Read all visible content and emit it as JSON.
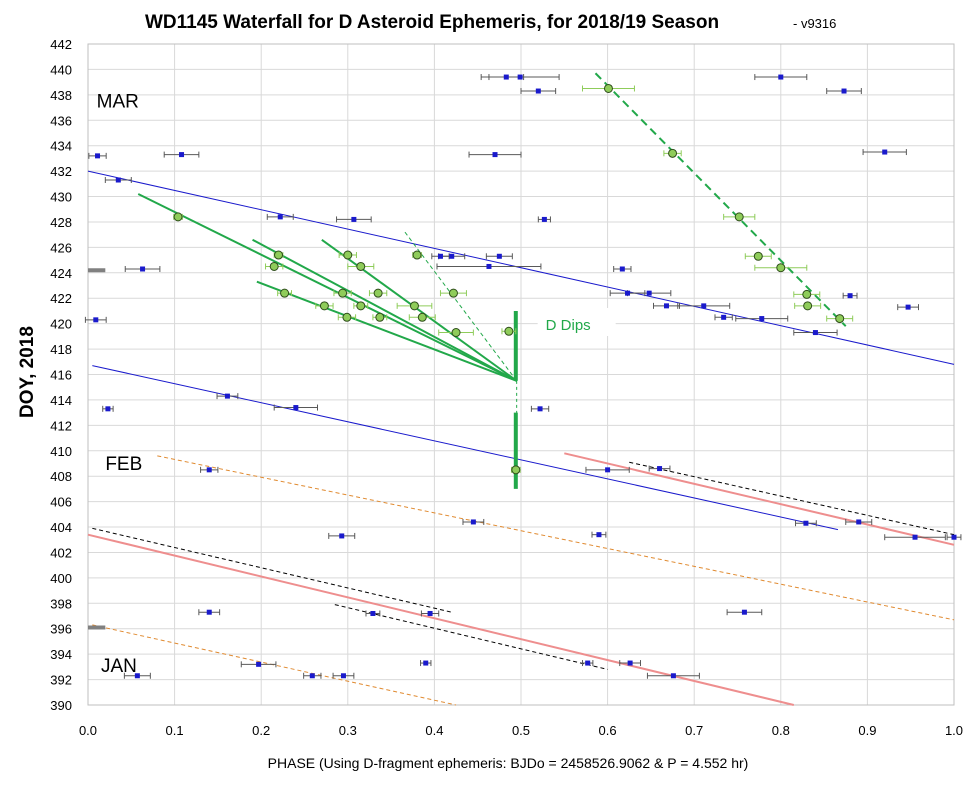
{
  "chart_data": {
    "type": "scatter",
    "title": "WD1145 Waterfall for D Asteroid Ephemeris, for 2018/19 Season",
    "subtitle": "- v9316",
    "xlabel": "PHASE (Using D-fragment ephemeris: BJDo = 2458526.9062 & P = 4.552 hr)",
    "ylabel": "DOY, 2018",
    "xlim": [
      0.0,
      1.0
    ],
    "ylim": [
      390,
      442
    ],
    "x_ticks": [
      "0.0",
      "0.1",
      "0.2",
      "0.3",
      "0.4",
      "0.5",
      "0.6",
      "0.7",
      "0.8",
      "0.9",
      "1.0"
    ],
    "y_ticks": [
      "390",
      "392",
      "394",
      "396",
      "398",
      "400",
      "402",
      "404",
      "406",
      "408",
      "410",
      "412",
      "414",
      "416",
      "418",
      "420",
      "422",
      "424",
      "426",
      "428",
      "430",
      "432",
      "434",
      "436",
      "438",
      "440",
      "442"
    ],
    "grid": true,
    "annotations": [
      {
        "text": "MAR",
        "x": 0.01,
        "y": 437.0
      },
      {
        "text": "FEB",
        "x": 0.02,
        "y": 408.5
      },
      {
        "text": "JAN",
        "x": 0.015,
        "y": 392.6
      },
      {
        "text": "D Dips",
        "x": 0.51,
        "y": 419.5
      }
    ],
    "series": [
      {
        "marker": "square",
        "color": "#1a1acc",
        "points": [
          {
            "x": 0.483,
            "y": 439.4,
            "xerr": 0.02
          },
          {
            "x": 0.499,
            "y": 439.4,
            "xerr": 0.045
          },
          {
            "x": 0.8,
            "y": 439.4,
            "xerr": 0.03
          },
          {
            "x": 0.52,
            "y": 438.3,
            "xerr": 0.02
          },
          {
            "x": 0.873,
            "y": 438.3,
            "xerr": 0.02
          },
          {
            "x": 0.011,
            "y": 433.2,
            "xerr": 0.01
          },
          {
            "x": 0.108,
            "y": 433.3,
            "xerr": 0.02
          },
          {
            "x": 0.47,
            "y": 433.3,
            "xerr": 0.03
          },
          {
            "x": 0.92,
            "y": 433.5,
            "xerr": 0.025
          },
          {
            "x": 0.035,
            "y": 431.3,
            "xerr": 0.015
          },
          {
            "x": 0.222,
            "y": 428.4,
            "xerr": 0.015
          },
          {
            "x": 0.307,
            "y": 428.2,
            "xerr": 0.02
          },
          {
            "x": 0.527,
            "y": 428.2,
            "xerr": 0.007
          },
          {
            "x": 0.407,
            "y": 425.3,
            "xerr": 0.01
          },
          {
            "x": 0.42,
            "y": 425.3,
            "xerr": 0.015
          },
          {
            "x": 0.475,
            "y": 425.3,
            "xerr": 0.015
          },
          {
            "x": 0.063,
            "y": 424.3,
            "xerr": 0.02
          },
          {
            "x": 0.463,
            "y": 424.5,
            "xerr": 0.06
          },
          {
            "x": 0.617,
            "y": 424.3,
            "xerr": 0.01
          },
          {
            "x": 0.623,
            "y": 422.4,
            "xerr": 0.02
          },
          {
            "x": 0.648,
            "y": 422.4,
            "xerr": 0.025
          },
          {
            "x": 0.88,
            "y": 422.2,
            "xerr": 0.008
          },
          {
            "x": 0.668,
            "y": 421.4,
            "xerr": 0.015
          },
          {
            "x": 0.711,
            "y": 421.4,
            "xerr": 0.03
          },
          {
            "x": 0.947,
            "y": 421.3,
            "xerr": 0.012
          },
          {
            "x": 0.009,
            "y": 420.3,
            "xerr": 0.012
          },
          {
            "x": 0.734,
            "y": 420.5,
            "xerr": 0.01
          },
          {
            "x": 0.778,
            "y": 420.4,
            "xerr": 0.03
          },
          {
            "x": 0.84,
            "y": 419.3,
            "xerr": 0.025
          },
          {
            "x": 0.161,
            "y": 414.3,
            "xerr": 0.012
          },
          {
            "x": 0.023,
            "y": 413.3,
            "xerr": 0.006
          },
          {
            "x": 0.24,
            "y": 413.4,
            "xerr": 0.025
          },
          {
            "x": 0.522,
            "y": 413.3,
            "xerr": 0.01
          },
          {
            "x": 0.14,
            "y": 408.5,
            "xerr": 0.01
          },
          {
            "x": 0.6,
            "y": 408.5,
            "xerr": 0.025
          },
          {
            "x": 0.66,
            "y": 408.6,
            "xerr": 0.012
          },
          {
            "x": 0.445,
            "y": 404.4,
            "xerr": 0.012
          },
          {
            "x": 0.829,
            "y": 404.3,
            "xerr": 0.012
          },
          {
            "x": 0.89,
            "y": 404.4,
            "xerr": 0.015
          },
          {
            "x": 0.293,
            "y": 403.3,
            "xerr": 0.015
          },
          {
            "x": 0.59,
            "y": 403.4,
            "xerr": 0.008
          },
          {
            "x": 0.955,
            "y": 403.2,
            "xerr": 0.035
          },
          {
            "x": 1.0,
            "y": 403.2,
            "xerr": 0.008
          },
          {
            "x": 0.14,
            "y": 397.3,
            "xerr": 0.012
          },
          {
            "x": 0.329,
            "y": 397.2,
            "xerr": 0.008
          },
          {
            "x": 0.395,
            "y": 397.2,
            "xerr": 0.01
          },
          {
            "x": 0.758,
            "y": 397.3,
            "xerr": 0.02
          },
          {
            "x": 0.39,
            "y": 393.3,
            "xerr": 0.006
          },
          {
            "x": 0.197,
            "y": 393.2,
            "xerr": 0.02
          },
          {
            "x": 0.577,
            "y": 393.3,
            "xerr": 0.006
          },
          {
            "x": 0.626,
            "y": 393.3,
            "xerr": 0.012
          },
          {
            "x": 0.057,
            "y": 392.3,
            "xerr": 0.015
          },
          {
            "x": 0.259,
            "y": 392.3,
            "xerr": 0.01
          },
          {
            "x": 0.295,
            "y": 392.3,
            "xerr": 0.012
          },
          {
            "x": 0.676,
            "y": 392.3,
            "xerr": 0.03
          }
        ]
      },
      {
        "marker": "circle",
        "color": "#8fcc5a",
        "points": [
          {
            "x": 0.601,
            "y": 438.5,
            "xerr": 0.03
          },
          {
            "x": 0.675,
            "y": 433.4,
            "xerr": 0.01
          },
          {
            "x": 0.104,
            "y": 428.4,
            "xerr": 0.005
          },
          {
            "x": 0.752,
            "y": 428.4,
            "xerr": 0.018
          },
          {
            "x": 0.22,
            "y": 425.4,
            "xerr": 0.005
          },
          {
            "x": 0.3,
            "y": 425.4,
            "xerr": 0.01
          },
          {
            "x": 0.38,
            "y": 425.4,
            "xerr": 0.005
          },
          {
            "x": 0.774,
            "y": 425.3,
            "xerr": 0.015
          },
          {
            "x": 0.215,
            "y": 424.5,
            "xerr": 0.01
          },
          {
            "x": 0.315,
            "y": 424.5,
            "xerr": 0.015
          },
          {
            "x": 0.8,
            "y": 424.4,
            "xerr": 0.03
          },
          {
            "x": 0.227,
            "y": 422.4,
            "xerr": 0.008
          },
          {
            "x": 0.294,
            "y": 422.4,
            "xerr": 0.01
          },
          {
            "x": 0.335,
            "y": 422.4,
            "xerr": 0.01
          },
          {
            "x": 0.422,
            "y": 422.4,
            "xerr": 0.015
          },
          {
            "x": 0.83,
            "y": 422.3,
            "xerr": 0.015
          },
          {
            "x": 0.273,
            "y": 421.4,
            "xerr": 0.01
          },
          {
            "x": 0.315,
            "y": 421.4,
            "xerr": 0.008
          },
          {
            "x": 0.377,
            "y": 421.4,
            "xerr": 0.02
          },
          {
            "x": 0.831,
            "y": 421.4,
            "xerr": 0.015
          },
          {
            "x": 0.299,
            "y": 420.5,
            "xerr": 0.01
          },
          {
            "x": 0.337,
            "y": 420.5,
            "xerr": 0.008
          },
          {
            "x": 0.386,
            "y": 420.5,
            "xerr": 0.015
          },
          {
            "x": 0.868,
            "y": 420.4,
            "xerr": 0.015
          },
          {
            "x": 0.425,
            "y": 419.3,
            "xerr": 0.02
          },
          {
            "x": 0.486,
            "y": 419.4,
            "xerr": 0.008
          },
          {
            "x": 0.494,
            "y": 408.5,
            "xerr": 0.005
          }
        ]
      }
    ],
    "lines": [
      {
        "color": "#1a1acc",
        "style": "solid",
        "from": [
          0.0,
          432.0
        ],
        "to": [
          1.0,
          416.8
        ]
      },
      {
        "color": "#1a1acc",
        "style": "solid",
        "from": [
          0.005,
          416.7
        ],
        "to": [
          0.866,
          403.8
        ]
      },
      {
        "color": "#22a84a",
        "style": "solid",
        "from": [
          0.058,
          430.2
        ],
        "to": [
          0.495,
          415.5
        ]
      },
      {
        "color": "#22a84a",
        "style": "solid",
        "from": [
          0.19,
          426.6
        ],
        "to": [
          0.495,
          415.5
        ]
      },
      {
        "color": "#22a84a",
        "style": "solid",
        "from": [
          0.27,
          426.6
        ],
        "to": [
          0.495,
          415.5
        ]
      },
      {
        "color": "#22a84a",
        "style": "solid",
        "from": [
          0.195,
          423.3
        ],
        "to": [
          0.495,
          415.5
        ]
      },
      {
        "color": "#22a84a",
        "style": "dashed",
        "from": [
          0.366,
          427.2
        ],
        "to": [
          0.495,
          415.5
        ]
      },
      {
        "color": "#22a84a",
        "style": "dashed",
        "from": [
          0.586,
          439.7
        ],
        "to": [
          0.875,
          419.8
        ]
      },
      {
        "color": "#22a84a",
        "style": "dashed",
        "from": [
          0.495,
          415.5
        ],
        "to": [
          0.495,
          412.5
        ]
      },
      {
        "color": "#22a84a",
        "style": "thick",
        "from": [
          0.494,
          421.0
        ],
        "to": [
          0.494,
          415.5
        ]
      },
      {
        "color": "#22a84a",
        "style": "thick",
        "from": [
          0.494,
          413.0
        ],
        "to": [
          0.494,
          407.0
        ]
      },
      {
        "color": "#ee8e8e",
        "style": "solid",
        "from": [
          0.55,
          409.8
        ],
        "to": [
          1.0,
          402.6
        ]
      },
      {
        "color": "#ee8e8e",
        "style": "solid",
        "from": [
          0.0,
          403.4
        ],
        "to": [
          0.815,
          390.0
        ]
      },
      {
        "color": "#000000",
        "style": "dashed",
        "from": [
          0.625,
          409.1
        ],
        "to": [
          1.0,
          403.4
        ]
      },
      {
        "color": "#000000",
        "style": "dashed",
        "from": [
          0.005,
          403.9
        ],
        "to": [
          0.42,
          397.3
        ]
      },
      {
        "color": "#000000",
        "style": "dashed",
        "from": [
          0.285,
          397.9
        ],
        "to": [
          0.6,
          392.8
        ]
      },
      {
        "color": "#e08a30",
        "style": "dashed",
        "from": [
          0.08,
          409.6
        ],
        "to": [
          1.0,
          396.7
        ]
      },
      {
        "color": "#e08a30",
        "style": "dashed",
        "from": [
          0.005,
          396.3
        ],
        "to": [
          0.425,
          390.0
        ]
      },
      {
        "color": "#808080",
        "style": "thick",
        "from": [
          0.0,
          424.2
        ],
        "to": [
          0.02,
          424.2
        ]
      },
      {
        "color": "#808080",
        "style": "thick",
        "from": [
          0.0,
          396.1
        ],
        "to": [
          0.02,
          396.1
        ]
      }
    ]
  }
}
